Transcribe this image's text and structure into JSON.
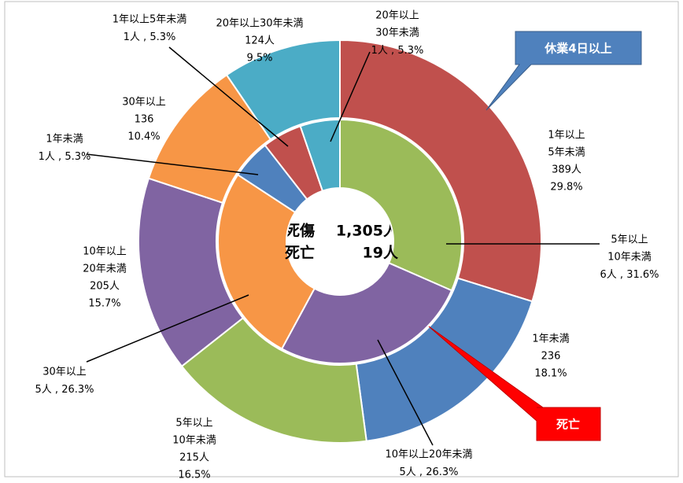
{
  "chart_data": [
    {
      "type": "pie",
      "name": "休業4日以上",
      "center_label": "死傷",
      "total": 1305,
      "total_label": "1,305人",
      "categories": [
        [
          "1年以上",
          "5年未満"
        ],
        [
          "1年未満"
        ],
        [
          "5年以上",
          "10年未満"
        ],
        [
          "10年以上",
          "20年未満"
        ],
        [
          "30年以上"
        ],
        [
          "20年以上30年未満"
        ]
      ],
      "values": [
        389,
        236,
        215,
        205,
        136,
        124
      ],
      "value_labels": [
        "389人",
        "236",
        "215人",
        "205人",
        "136",
        "124人"
      ],
      "percents": [
        29.8,
        18.1,
        16.5,
        15.7,
        10.4,
        9.5
      ],
      "percent_labels": [
        "29.8%",
        "18.1%",
        "16.5%",
        "15.7%",
        "10.4%",
        "9.5%"
      ],
      "colors": [
        "#c0504d",
        "#4f81bd",
        "#9bbb59",
        "#8064a2",
        "#f79646",
        "#4bacc6"
      ]
    },
    {
      "type": "pie",
      "name": "死亡",
      "center_label": "死亡",
      "total": 19,
      "total_label": "19人",
      "separator": " , ",
      "categories": [
        [
          "5年以上",
          "10年未満"
        ],
        [
          "10年以上20年未満"
        ],
        [
          "30年以上"
        ],
        [
          "1年未満"
        ],
        [
          "1年以上5年未満"
        ],
        [
          "20年以上",
          "30年未満"
        ]
      ],
      "values": [
        6,
        5,
        5,
        1,
        1,
        1
      ],
      "value_labels": [
        "6人",
        "5人",
        "5人",
        "1人",
        "1人",
        "1人"
      ],
      "percents": [
        31.6,
        26.3,
        26.3,
        5.3,
        5.3,
        5.3
      ],
      "percent_labels": [
        "31.6%",
        "26.3%",
        "26.3%",
        "5.3%",
        "5.3%",
        "5.3%"
      ],
      "colors": [
        "#9bbb59",
        "#8064a2",
        "#f79646",
        "#4f81bd",
        "#c0504d",
        "#4bacc6"
      ]
    }
  ]
}
